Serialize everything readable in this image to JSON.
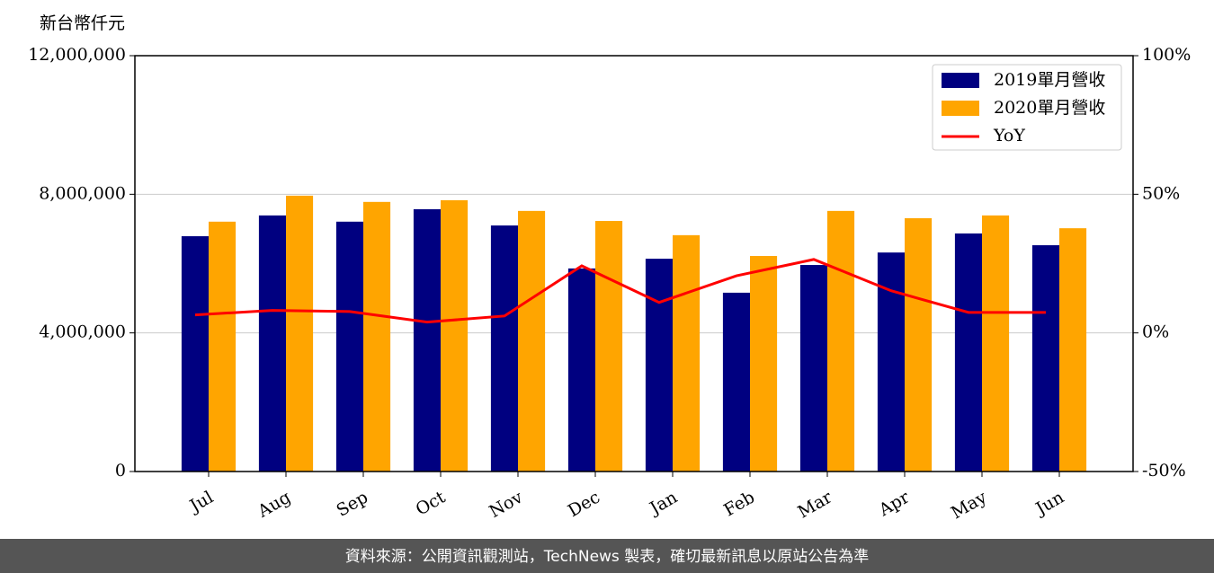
{
  "chart_data": {
    "type": "bar-line",
    "y_unit_label": "新台幣仟元",
    "categories": [
      "Jul",
      "Aug",
      "Sep",
      "Oct",
      "Nov",
      "Dec",
      "Jan",
      "Feb",
      "Mar",
      "Apr",
      "May",
      "Jun"
    ],
    "series": [
      {
        "name": "2019單月營收",
        "type": "bar",
        "color": "#000080",
        "values": [
          6790000,
          7390000,
          7210000,
          7570000,
          7100000,
          5860000,
          6140000,
          5160000,
          5960000,
          6320000,
          6870000,
          6530000
        ]
      },
      {
        "name": "2020單月營收",
        "type": "bar",
        "color": "#ffa500",
        "values": [
          7210000,
          7960000,
          7780000,
          7830000,
          7520000,
          7230000,
          6820000,
          6220000,
          7520000,
          7310000,
          7390000,
          7020000
        ]
      },
      {
        "name": "YoY",
        "type": "line",
        "axis": "y2",
        "color": "#ff0000",
        "values": [
          6.5,
          8.1,
          7.7,
          3.9,
          6.1,
          24.2,
          11.0,
          20.6,
          26.5,
          15.2,
          7.4,
          7.4
        ]
      }
    ],
    "ylim": [
      0,
      12000000
    ],
    "yticks": [
      0,
      {
        "value": 4000000,
        "label": "4,000,000"
      },
      {
        "value": 8000000,
        "label": "8,000,000"
      },
      {
        "value": 12000000,
        "label": "12,000,000"
      }
    ],
    "y2lim": [
      -50,
      100
    ],
    "y2ticks": [
      {
        "value": -50,
        "label": "-50%"
      },
      {
        "value": 0,
        "label": "0%"
      },
      {
        "value": 50,
        "label": "50%"
      },
      {
        "value": 100,
        "label": "100%"
      }
    ],
    "grid": true,
    "legend": "upper right",
    "footer": "資料來源：公開資訊觀測站，TechNews 製表，確切最新訊息以原站公告為準"
  }
}
